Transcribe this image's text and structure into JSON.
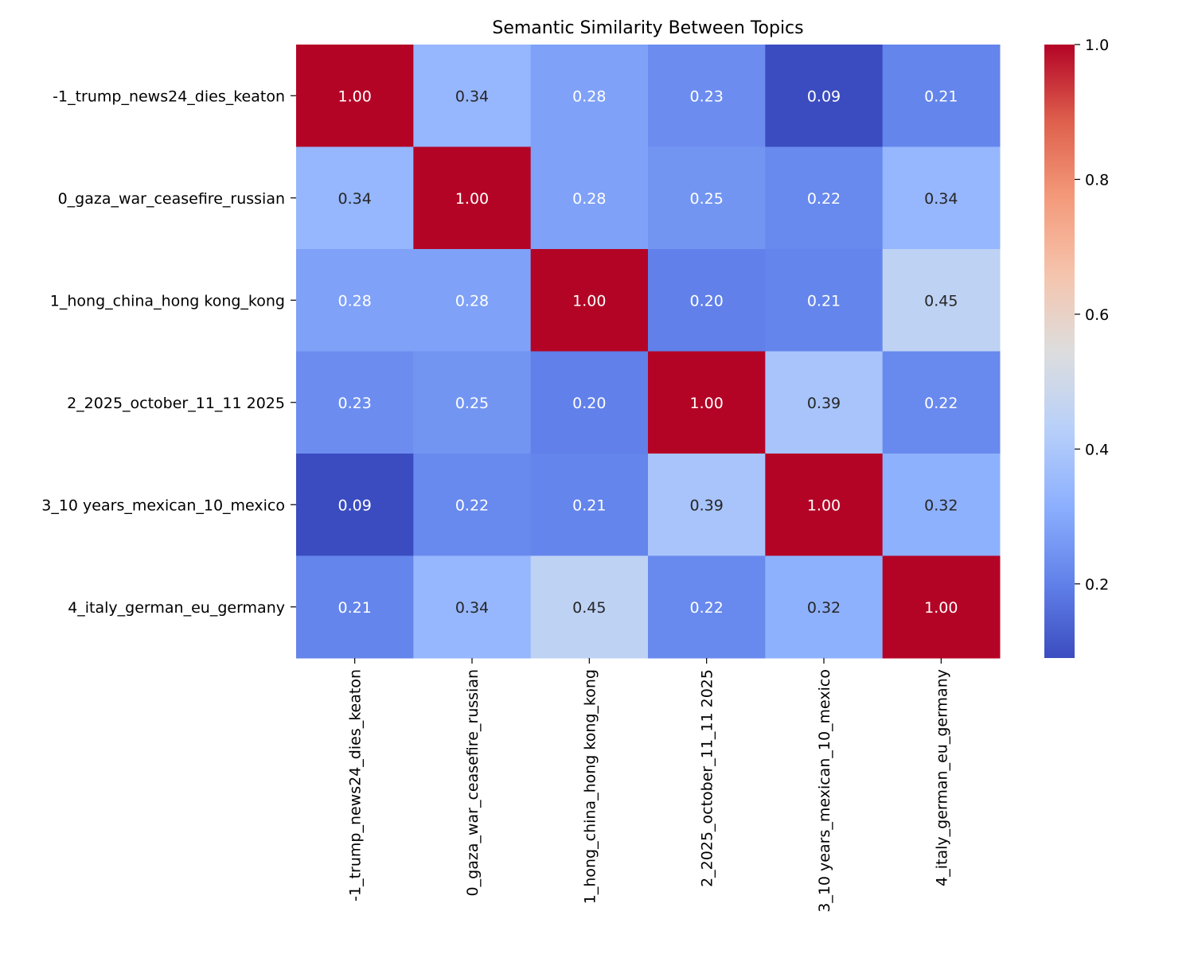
{
  "chart_data": {
    "type": "heatmap",
    "title": "Semantic Similarity Between Topics",
    "xlabel": "",
    "ylabel": "",
    "row_labels": [
      "-1_trump_news24_dies_keaton",
      "0_gaza_war_ceasefire_russian",
      "1_hong_china_hong kong_kong",
      "2_2025_october_11_11 2025",
      "3_10 years_mexican_10_mexico",
      "4_italy_german_eu_germany"
    ],
    "col_labels": [
      "-1_trump_news24_dies_keaton",
      "0_gaza_war_ceasefire_russian",
      "1_hong_china_hong kong_kong",
      "2_2025_october_11_11 2025",
      "3_10 years_mexican_10_mexico",
      "4_italy_german_eu_germany"
    ],
    "values": [
      [
        1.0,
        0.34,
        0.28,
        0.23,
        0.09,
        0.21
      ],
      [
        0.34,
        1.0,
        0.28,
        0.25,
        0.22,
        0.34
      ],
      [
        0.28,
        0.28,
        1.0,
        0.2,
        0.21,
        0.45
      ],
      [
        0.23,
        0.25,
        0.2,
        1.0,
        0.39,
        0.22
      ],
      [
        0.09,
        0.22,
        0.21,
        0.39,
        1.0,
        0.32
      ],
      [
        0.21,
        0.34,
        0.45,
        0.22,
        0.32,
        1.0
      ]
    ],
    "annotation_format": "0.00",
    "colormap": "coolwarm",
    "color_range": [
      0.09,
      1.0
    ],
    "colorbar_ticks": [
      "0.2",
      "0.4",
      "0.6",
      "0.8",
      "1.0"
    ],
    "colorbar_tick_values": [
      0.2,
      0.4,
      0.6,
      0.8,
      1.0
    ],
    "grid": false
  }
}
